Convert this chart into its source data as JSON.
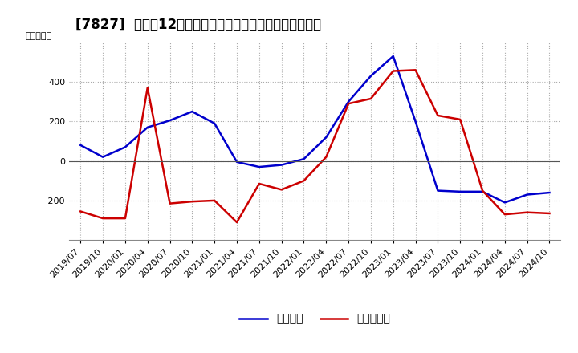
{
  "title": "[7827]  利益の12か月移動合計の対前年同期増減額の推移",
  "ylabel": "（百万円）",
  "background_color": "#ffffff",
  "plot_background": "#ffffff",
  "grid_color": "#aaaaaa",
  "dates": [
    "2019/07",
    "2019/10",
    "2020/01",
    "2020/04",
    "2020/07",
    "2020/10",
    "2021/01",
    "2021/04",
    "2021/07",
    "2021/10",
    "2022/01",
    "2022/04",
    "2022/07",
    "2022/10",
    "2023/01",
    "2023/04",
    "2023/07",
    "2023/10",
    "2024/01",
    "2024/04",
    "2024/07",
    "2024/10"
  ],
  "keijo_rieki": [
    80,
    20,
    70,
    170,
    205,
    250,
    190,
    -5,
    -30,
    -20,
    10,
    120,
    300,
    430,
    530,
    200,
    -150,
    -155,
    -155,
    -210,
    -170,
    -160
  ],
  "touki_junrieki": [
    -255,
    -290,
    -290,
    370,
    -215,
    -205,
    -200,
    -310,
    -115,
    -145,
    -100,
    20,
    290,
    315,
    455,
    460,
    230,
    210,
    -150,
    -270,
    -260,
    -265
  ],
  "keijo_color": "#0000cc",
  "touki_color": "#cc0000",
  "ylim_min": -400,
  "ylim_max": 600,
  "yticks": [
    -200,
    0,
    200,
    400
  ],
  "legend_keijo": "経常利益",
  "legend_touki": "当期純利益",
  "title_fontsize": 12,
  "axis_fontsize": 8,
  "legend_fontsize": 10
}
